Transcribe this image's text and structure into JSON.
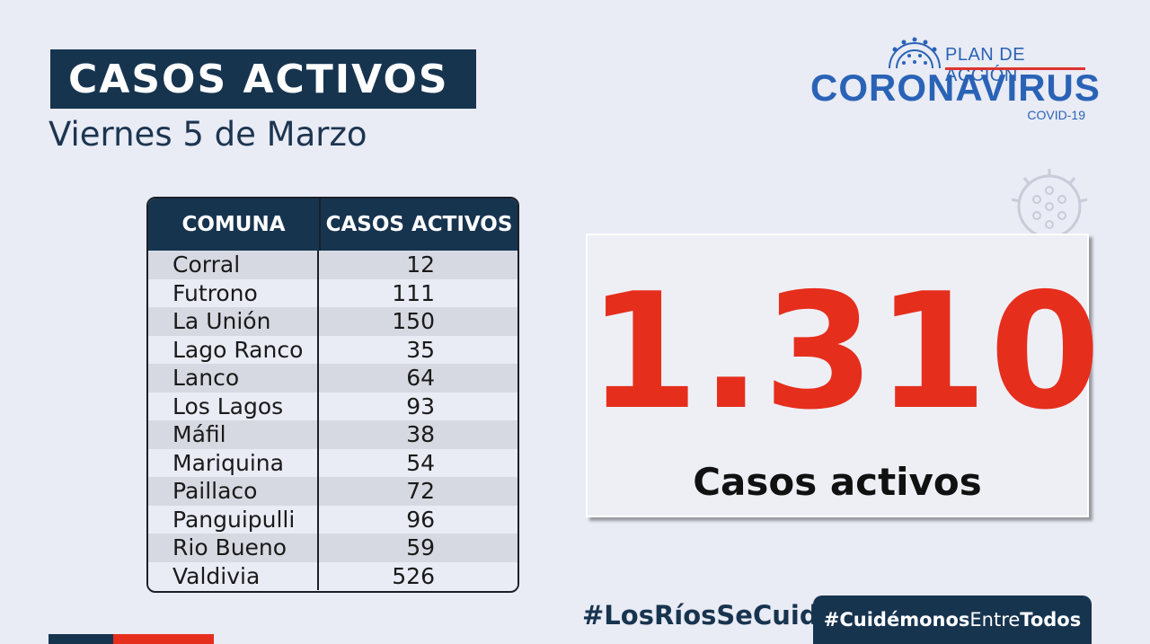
{
  "header": {
    "title": "CASOS ACTIVOS",
    "subtitle": "Viernes 5  de Marzo"
  },
  "logo": {
    "plan": "PLAN DE ACCIÓN",
    "main": "CORONAVIRUS",
    "covid": "COVID-19",
    "brand_color": "#2a63b6"
  },
  "table": {
    "headers": [
      "COMUNA",
      "CASOS ACTIVOS"
    ],
    "rows": [
      {
        "comuna": "Corral",
        "casos": "12"
      },
      {
        "comuna": "Futrono",
        "casos": "111"
      },
      {
        "comuna": "La Unión",
        "casos": "150"
      },
      {
        "comuna": "Lago Ranco",
        "casos": "35"
      },
      {
        "comuna": "Lanco",
        "casos": "64"
      },
      {
        "comuna": "Los Lagos",
        "casos": "93"
      },
      {
        "comuna": "Máfil",
        "casos": "38"
      },
      {
        "comuna": "Mariquina",
        "casos": "54"
      },
      {
        "comuna": "Paillaco",
        "casos": "72"
      },
      {
        "comuna": "Panguipulli",
        "casos": "96"
      },
      {
        "comuna": "Rio Bueno",
        "casos": "59"
      },
      {
        "comuna": "Valdivia",
        "casos": "526"
      }
    ]
  },
  "total": {
    "value": "1.310",
    "label": "Casos activos",
    "color": "#e62e1d"
  },
  "hashtags": {
    "first": "#LosRíosSeCuida",
    "second_bold1": "#Cuidémonos",
    "second_thin": "Entre",
    "second_bold2": "Todos"
  },
  "colors": {
    "navy": "#17344f",
    "background": "#e9ebf5"
  }
}
